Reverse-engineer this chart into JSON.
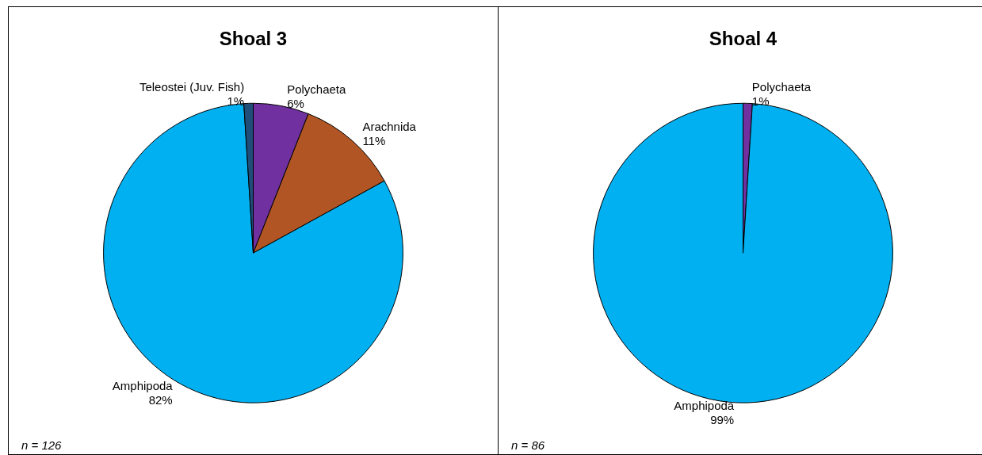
{
  "chart_data": [
    {
      "type": "pie",
      "title": "Shoal 3",
      "categories": [
        "Polychaeta",
        "Arachnida",
        "Amphipoda",
        "Teleostei (Juv. Fish)"
      ],
      "values": [
        6,
        11,
        82,
        1
      ],
      "value_labels": [
        "6%",
        "11%",
        "82%",
        "1%"
      ],
      "colors": [
        "#7030a0",
        "#b05523",
        "#00b0f0",
        "#1f4e79"
      ],
      "legend": false,
      "annotations": [
        "n = 126"
      ]
    },
    {
      "type": "pie",
      "title": "Shoal 4",
      "categories": [
        "Polychaeta",
        "Amphipoda"
      ],
      "values": [
        1,
        99
      ],
      "value_labels": [
        "1%",
        "99%"
      ],
      "colors": [
        "#7030a0",
        "#00b0f0"
      ],
      "legend": false,
      "annotations": [
        "n = 86"
      ]
    }
  ]
}
